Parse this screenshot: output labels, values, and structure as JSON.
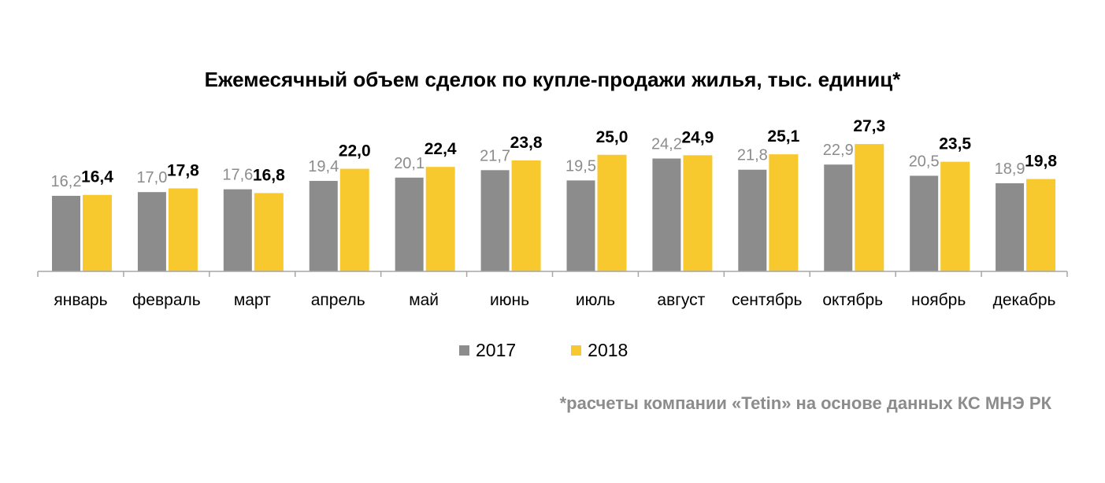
{
  "chart_data": {
    "type": "bar",
    "title": "Ежемесячный объем сделок по купле-продажи жилья, тыс. единиц*",
    "categories": [
      "январь",
      "февраль",
      "март",
      "апрель",
      "май",
      "июнь",
      "июль",
      "август",
      "сентябрь",
      "октябрь",
      "ноябрь",
      "декабрь"
    ],
    "series": [
      {
        "name": "2017",
        "color": "#8c8c8c",
        "values": [
          16.2,
          17.0,
          17.6,
          19.4,
          20.1,
          21.7,
          19.5,
          24.2,
          21.8,
          22.9,
          20.5,
          18.9
        ],
        "labels": [
          "16,2",
          "17,0",
          "17,6",
          "19,4",
          "20,1",
          "21,7",
          "19,5",
          "24,2",
          "21,8",
          "22,9",
          "20,5",
          "18,9"
        ]
      },
      {
        "name": "2018",
        "color": "#f8c92f",
        "values": [
          16.4,
          17.8,
          16.8,
          22.0,
          22.4,
          23.8,
          25.0,
          24.9,
          25.1,
          27.3,
          23.5,
          19.8
        ],
        "labels": [
          "16,4",
          "17,8",
          "16,8",
          "22,0",
          "22,4",
          "23,8",
          "25,0",
          "24,9",
          "25,1",
          "27,3",
          "23,5",
          "19,8"
        ]
      }
    ],
    "ylim": [
      0,
      30
    ],
    "grid": false,
    "legend_position": "bottom",
    "footnote": "*расчеты компании «Tetin» на основе данных КС МНЭ РК"
  }
}
